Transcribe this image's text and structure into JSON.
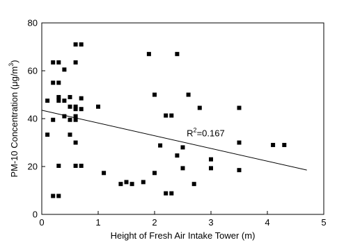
{
  "chart_data": {
    "type": "scatter",
    "title": "",
    "xlabel": "Height of Fresh Air Intake Tower (m)",
    "ylabel_main": "PM-10 Concentration (",
    "ylabel_unit": "μg/m",
    "ylabel_exp": "3",
    "ylabel_close": ")",
    "xlim": [
      0,
      5
    ],
    "ylim": [
      0,
      80
    ],
    "xticks": [
      0,
      1,
      2,
      3,
      4,
      5
    ],
    "yticks": [
      0,
      20,
      40,
      60,
      80
    ],
    "grid": false,
    "legend": false,
    "marker": "square",
    "marker_color": "#000000",
    "points": [
      {
        "x": 0.1,
        "y": 47.5
      },
      {
        "x": 0.1,
        "y": 33.3
      },
      {
        "x": 0.2,
        "y": 63.5
      },
      {
        "x": 0.2,
        "y": 55.0
      },
      {
        "x": 0.2,
        "y": 39.5
      },
      {
        "x": 0.2,
        "y": 7.7
      },
      {
        "x": 0.3,
        "y": 63.5
      },
      {
        "x": 0.3,
        "y": 55.0
      },
      {
        "x": 0.3,
        "y": 49.0
      },
      {
        "x": 0.3,
        "y": 47.5
      },
      {
        "x": 0.3,
        "y": 20.3
      },
      {
        "x": 0.3,
        "y": 7.7
      },
      {
        "x": 0.4,
        "y": 60.5
      },
      {
        "x": 0.4,
        "y": 47.5
      },
      {
        "x": 0.4,
        "y": 41.0
      },
      {
        "x": 0.5,
        "y": 49.0
      },
      {
        "x": 0.5,
        "y": 45.0
      },
      {
        "x": 0.5,
        "y": 39.5
      },
      {
        "x": 0.5,
        "y": 33.3
      },
      {
        "x": 0.6,
        "y": 71.0
      },
      {
        "x": 0.6,
        "y": 63.5
      },
      {
        "x": 0.6,
        "y": 45.0
      },
      {
        "x": 0.6,
        "y": 44.0
      },
      {
        "x": 0.6,
        "y": 41.0
      },
      {
        "x": 0.6,
        "y": 39.5
      },
      {
        "x": 0.6,
        "y": 30.0
      },
      {
        "x": 0.6,
        "y": 20.3
      },
      {
        "x": 0.7,
        "y": 71.0
      },
      {
        "x": 0.7,
        "y": 48.5
      },
      {
        "x": 0.7,
        "y": 44.0
      },
      {
        "x": 0.7,
        "y": 20.3
      },
      {
        "x": 1.0,
        "y": 45.0
      },
      {
        "x": 1.1,
        "y": 17.3
      },
      {
        "x": 1.4,
        "y": 12.7
      },
      {
        "x": 1.5,
        "y": 13.5
      },
      {
        "x": 1.6,
        "y": 12.7
      },
      {
        "x": 1.8,
        "y": 13.5
      },
      {
        "x": 1.9,
        "y": 67.0
      },
      {
        "x": 2.0,
        "y": 50.0
      },
      {
        "x": 2.0,
        "y": 17.3
      },
      {
        "x": 2.1,
        "y": 28.8
      },
      {
        "x": 2.2,
        "y": 41.3
      },
      {
        "x": 2.2,
        "y": 8.8
      },
      {
        "x": 2.3,
        "y": 41.3
      },
      {
        "x": 2.3,
        "y": 8.8
      },
      {
        "x": 2.4,
        "y": 67.0
      },
      {
        "x": 2.4,
        "y": 24.6
      },
      {
        "x": 2.5,
        "y": 28.0
      },
      {
        "x": 2.5,
        "y": 19.3
      },
      {
        "x": 2.6,
        "y": 50.0
      },
      {
        "x": 2.7,
        "y": 12.7
      },
      {
        "x": 2.8,
        "y": 44.5
      },
      {
        "x": 3.0,
        "y": 23.0
      },
      {
        "x": 3.0,
        "y": 19.3
      },
      {
        "x": 3.5,
        "y": 44.5
      },
      {
        "x": 3.5,
        "y": 30.0
      },
      {
        "x": 3.5,
        "y": 18.5
      },
      {
        "x": 4.1,
        "y": 29.0
      },
      {
        "x": 4.3,
        "y": 29.0
      }
    ],
    "trendline": {
      "type": "linear",
      "x_start": 0,
      "y_start": 43.5,
      "x_end": 4.7,
      "y_end": 18.5,
      "color": "#000000"
    },
    "annotation": {
      "text_main": "R",
      "text_exp": "2",
      "text_rest": "=0.167",
      "x": 2.57,
      "y": 34
    }
  }
}
